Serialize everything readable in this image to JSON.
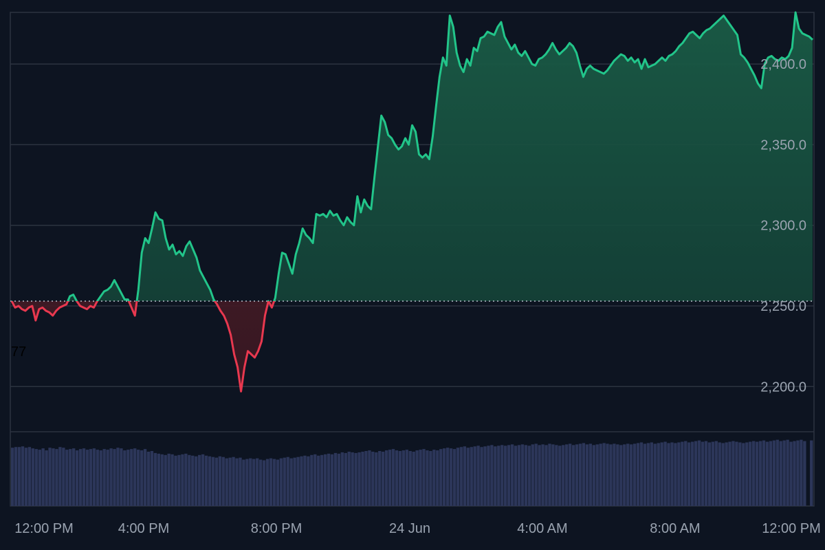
{
  "chart_data": {
    "type": "area",
    "colors": {
      "background": "#0d1421",
      "up_line": "#22c58a",
      "down_line": "#e8384f",
      "grid": "#2c3340",
      "baseline": "#b8c0cc",
      "volume": "#2c3659",
      "axis_text": "#9aa3b0"
    },
    "baseline_value": 2253,
    "ylim": [
      2172,
      2432
    ],
    "y_ticks": [
      {
        "value": 2200,
        "label": "2,200.0"
      },
      {
        "value": 2250,
        "label": "2,250.0"
      },
      {
        "value": 2300,
        "label": "2,300.0"
      },
      {
        "value": 2350,
        "label": "2,350.0"
      },
      {
        "value": 2400,
        "label": "2,400.0"
      }
    ],
    "x_ticks": [
      "12:00 PM",
      "4:00 PM",
      "8:00 PM",
      "24 Jun",
      "4:00 AM",
      "8:00 AM",
      "12:00 PM"
    ],
    "stray_label": "77",
    "price_series": {
      "name": "",
      "values": [
        2253,
        2249,
        2250,
        2248,
        2247,
        2249,
        2250,
        2241,
        2248,
        2249,
        2247,
        2246,
        2244,
        2247,
        2249,
        2250,
        2251,
        2256,
        2257,
        2253,
        2250,
        2249,
        2248,
        2250,
        2249,
        2253,
        2256,
        2259,
        2260,
        2262,
        2266,
        2262,
        2258,
        2254,
        2254,
        2249,
        2244,
        2260,
        2283,
        2292,
        2289,
        2298,
        2308,
        2304,
        2303,
        2292,
        2285,
        2288,
        2282,
        2284,
        2281,
        2287,
        2290,
        2285,
        2280,
        2272,
        2268,
        2264,
        2260,
        2254,
        2251,
        2247,
        2244,
        2239,
        2232,
        2220,
        2212,
        2197,
        2212,
        2222,
        2220,
        2218,
        2222,
        2228,
        2244,
        2253,
        2249,
        2255,
        2270,
        2283,
        2282,
        2276,
        2270,
        2282,
        2289,
        2298,
        2294,
        2292,
        2289,
        2307,
        2306,
        2307,
        2305,
        2309,
        2306,
        2307,
        2303,
        2300,
        2305,
        2302,
        2300,
        2318,
        2308,
        2316,
        2312,
        2310,
        2330,
        2349,
        2368,
        2364,
        2356,
        2354,
        2350,
        2347,
        2349,
        2354,
        2350,
        2362,
        2358,
        2344,
        2342,
        2344,
        2341,
        2355,
        2374,
        2392,
        2404,
        2399,
        2430,
        2423,
        2407,
        2399,
        2395,
        2403,
        2399,
        2410,
        2408,
        2416,
        2417,
        2420,
        2419,
        2418,
        2423,
        2426,
        2417,
        2413,
        2409,
        2412,
        2407,
        2405,
        2408,
        2404,
        2400,
        2399,
        2403,
        2404,
        2406,
        2409,
        2413,
        2409,
        2406,
        2408,
        2410,
        2413,
        2411,
        2407,
        2399,
        2392,
        2397,
        2399,
        2397,
        2396,
        2395,
        2394,
        2396,
        2399,
        2402,
        2404,
        2406,
        2405,
        2402,
        2404,
        2401,
        2403,
        2397,
        2403,
        2398,
        2399,
        2400,
        2402,
        2404,
        2402,
        2405,
        2406,
        2408,
        2411,
        2413,
        2416,
        2419,
        2420,
        2418,
        2416,
        2419,
        2421,
        2422,
        2424,
        2426,
        2428,
        2430,
        2427,
        2424,
        2421,
        2418,
        2406,
        2404,
        2401,
        2397,
        2393,
        2388,
        2385,
        2400,
        2404,
        2405,
        2403,
        2402,
        2404,
        2403,
        2405,
        2410,
        2432,
        2422,
        2419,
        2418,
        2417,
        2415
      ]
    },
    "volume_series": {
      "name": "",
      "ylim": [
        0,
        110
      ],
      "values": [
        88,
        89,
        89,
        90,
        88,
        89,
        87,
        86,
        85,
        87,
        84,
        88,
        87,
        86,
        89,
        88,
        85,
        86,
        87,
        84,
        86,
        87,
        85,
        86,
        87,
        85,
        84,
        86,
        85,
        87,
        86,
        88,
        87,
        84,
        85,
        86,
        87,
        85,
        84,
        86,
        82,
        83,
        80,
        79,
        78,
        77,
        79,
        78,
        76,
        77,
        78,
        79,
        77,
        76,
        75,
        77,
        78,
        76,
        75,
        74,
        73,
        75,
        74,
        72,
        73,
        74,
        72,
        73,
        70,
        71,
        72,
        71,
        72,
        70,
        69,
        71,
        72,
        71,
        70,
        72,
        73,
        74,
        72,
        73,
        74,
        75,
        76,
        75,
        77,
        78,
        76,
        77,
        78,
        79,
        78,
        80,
        79,
        81,
        80,
        82,
        81,
        80,
        81,
        82,
        83,
        84,
        82,
        81,
        83,
        82,
        84,
        85,
        86,
        84,
        83,
        84,
        85,
        83,
        82,
        84,
        85,
        86,
        84,
        83,
        85,
        84,
        86,
        87,
        88,
        87,
        86,
        88,
        89,
        90,
        88,
        89,
        90,
        91,
        89,
        90,
        91,
        92,
        90,
        91,
        92,
        91,
        92,
        93,
        91,
        92,
        93,
        92,
        91,
        93,
        94,
        92,
        93,
        92,
        94,
        93,
        92,
        91,
        92,
        93,
        94,
        92,
        93,
        94,
        95,
        93,
        94,
        92,
        93,
        94,
        95,
        94,
        93,
        94,
        93,
        92,
        93,
        94,
        93,
        94,
        95,
        96,
        94,
        95,
        96,
        94,
        95,
        96,
        97,
        95,
        96,
        95,
        96,
        97,
        98,
        96,
        97,
        98,
        99,
        97,
        98,
        96,
        97,
        98,
        96,
        95,
        96,
        97,
        98,
        97,
        96,
        95,
        96,
        97,
        98,
        97,
        98,
        99,
        97,
        98,
        99,
        100,
        98,
        99,
        100,
        97,
        98,
        99,
        100,
        98,
        0,
        99
      ]
    }
  }
}
